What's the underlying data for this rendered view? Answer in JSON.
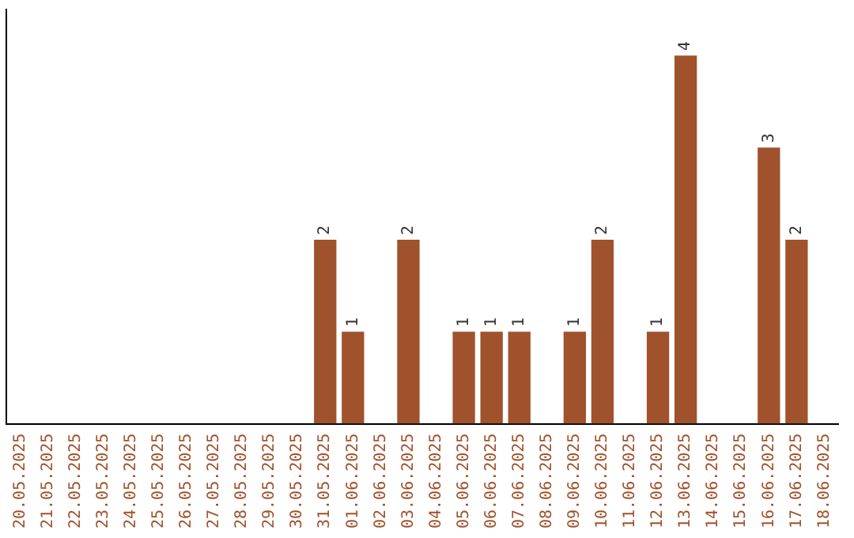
{
  "chart_data": {
    "type": "bar",
    "categories": [
      "20.05.2025",
      "21.05.2025",
      "22.05.2025",
      "23.05.2025",
      "24.05.2025",
      "25.05.2025",
      "26.05.2025",
      "27.05.2025",
      "28.05.2025",
      "29.05.2025",
      "30.05.2025",
      "31.05.2025",
      "01.06.2025",
      "02.06.2025",
      "03.06.2025",
      "04.06.2025",
      "05.06.2025",
      "06.06.2025",
      "07.06.2025",
      "08.06.2025",
      "09.06.2025",
      "10.06.2025",
      "11.06.2025",
      "12.06.2025",
      "13.06.2025",
      "14.06.2025",
      "15.06.2025",
      "16.06.2025",
      "17.06.2025",
      "18.06.2025"
    ],
    "values": [
      0,
      0,
      0,
      0,
      0,
      0,
      0,
      0,
      0,
      0,
      0,
      2,
      1,
      0,
      2,
      0,
      1,
      1,
      1,
      0,
      1,
      2,
      0,
      1,
      4,
      0,
      0,
      3,
      2,
      0
    ],
    "value_labels": [
      null,
      null,
      null,
      null,
      null,
      null,
      null,
      null,
      null,
      null,
      null,
      "2",
      "1",
      null,
      "2",
      null,
      "1",
      "1",
      "1",
      null,
      "1",
      "2",
      null,
      "1",
      "4",
      null,
      null,
      "3",
      "2",
      null
    ],
    "color": "#a0522d",
    "grid": false,
    "legend": false,
    "tick_labels": "x"
  }
}
